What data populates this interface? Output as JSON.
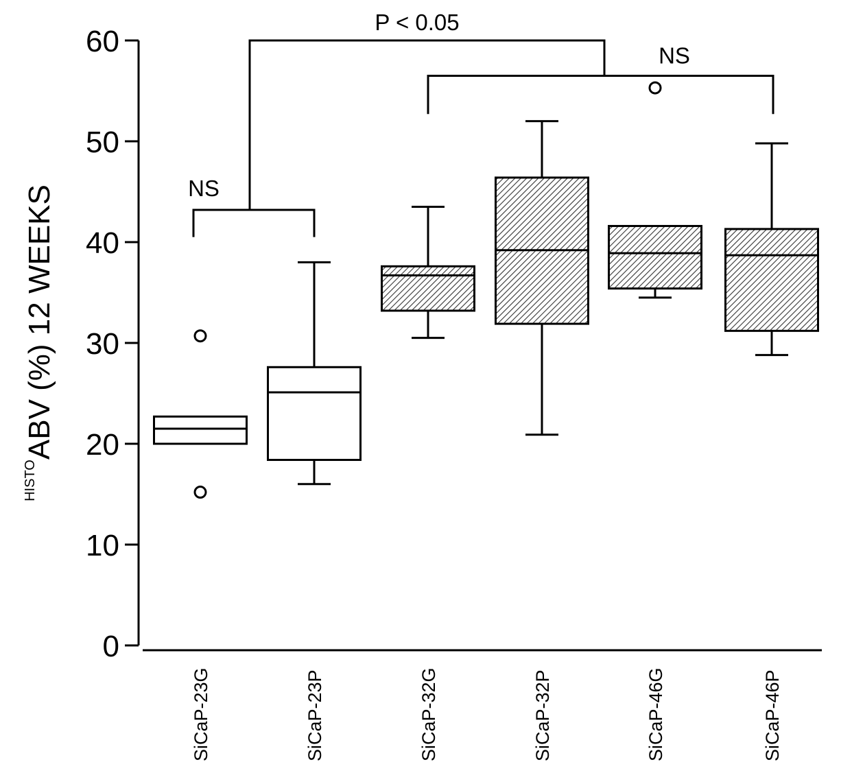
{
  "chart_data": {
    "type": "box",
    "ylabel_superscript": "HISTO",
    "ylabel": "ABV (%) 12 WEEKS",
    "ylim": [
      0,
      60
    ],
    "yticks": [
      "0",
      "10",
      "20",
      "30",
      "40",
      "50",
      "60"
    ],
    "categories": [
      "SiCaP-23G",
      "SiCaP-23P",
      "SiCaP-32G",
      "SiCaP-32P",
      "SiCaP-46G",
      "SiCaP-46P"
    ],
    "boxes": [
      {
        "category": "SiCaP-23G",
        "min": 20.0,
        "q1": 20.0,
        "median": 21.5,
        "q3": 22.7,
        "max": 22.7,
        "outliers": [
          30.7,
          15.2
        ],
        "hatched": false
      },
      {
        "category": "SiCaP-23P",
        "min": 16.0,
        "q1": 18.4,
        "median": 25.1,
        "q3": 27.6,
        "max": 38.0,
        "outliers": [],
        "hatched": false
      },
      {
        "category": "SiCaP-32G",
        "min": 30.5,
        "q1": 33.2,
        "median": 36.7,
        "q3": 37.6,
        "max": 43.5,
        "outliers": [],
        "hatched": true
      },
      {
        "category": "SiCaP-32P",
        "min": 20.9,
        "q1": 31.9,
        "median": 39.2,
        "q3": 46.4,
        "max": 52.0,
        "outliers": [],
        "hatched": true
      },
      {
        "category": "SiCaP-46G",
        "min": 34.5,
        "q1": 35.4,
        "median": 38.9,
        "q3": 41.6,
        "max": 41.6,
        "outliers": [
          55.3
        ],
        "hatched": true
      },
      {
        "category": "SiCaP-46P",
        "min": 28.8,
        "q1": 31.2,
        "median": 38.7,
        "q3": 41.3,
        "max": 49.8,
        "outliers": [],
        "hatched": true
      }
    ],
    "annotations": [
      {
        "label": "NS",
        "from": 0,
        "to": 1,
        "y": 43.2,
        "tick_end": 40.5
      },
      {
        "label": "NS",
        "from": 2,
        "to": 5,
        "y": 56.5,
        "tick_end": 52.7
      },
      {
        "label": "P < 0.05",
        "from": 0.5,
        "to": 3.5,
        "y": 60.0,
        "tick_end": 56.5
      }
    ],
    "grid": false,
    "legend": "none"
  }
}
